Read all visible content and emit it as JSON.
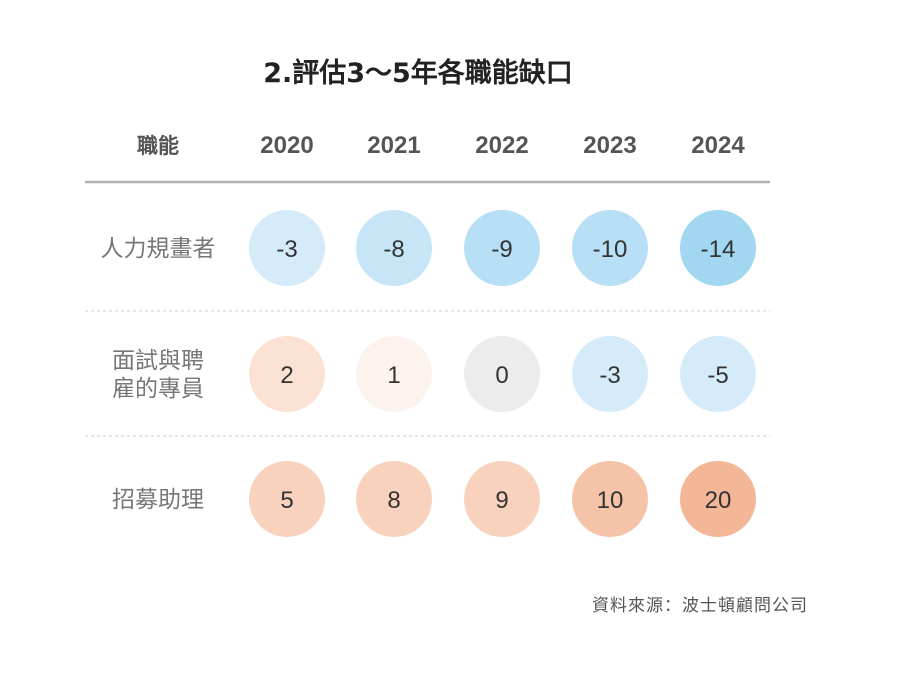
{
  "chart_data": {
    "type": "table",
    "title": "2.評估3～5年各職能缺口",
    "header_label": "職能",
    "columns": [
      "2020",
      "2021",
      "2022",
      "2023",
      "2024"
    ],
    "rows": [
      {
        "label_lines": [
          "人力規畫者"
        ],
        "values": [
          -3,
          -8,
          -9,
          -10,
          -14
        ]
      },
      {
        "label_lines": [
          "面試與聘",
          "雇的專員"
        ],
        "values": [
          2,
          1,
          0,
          -3,
          -5
        ]
      },
      {
        "label_lines": [
          "招募助理"
        ],
        "values": [
          5,
          8,
          9,
          10,
          20
        ]
      }
    ],
    "source": "資料來源：波士頓顧問公司"
  },
  "colors": {
    "negative": [
      "#e8f4fc",
      "#d5ebf9",
      "#c6e6f8",
      "#b7dff6",
      "#a2d7f2"
    ],
    "positive": [
      "#fdf1ea",
      "#fcf3ef",
      "#fce2d4",
      "#f8d2bd",
      "#f5c3a7",
      "#f3b696"
    ],
    "zero": "#ececec",
    "rule": "#b0b0b0"
  }
}
